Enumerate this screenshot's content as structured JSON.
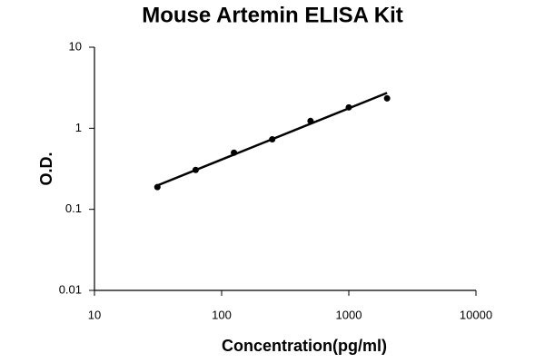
{
  "chart_data": {
    "type": "scatter",
    "title": "Mouse Artemin ELISA Kit",
    "x_label": "Concentration(pg/ml)",
    "y_label": "O.D.",
    "x": [
      31.25,
      62.5,
      125,
      250,
      500,
      1000,
      2000
    ],
    "values": [
      0.188,
      0.306,
      0.5,
      0.73,
      1.23,
      1.81,
      2.34
    ],
    "color": "#000000",
    "fit_line": {
      "x": [
        31.25,
        2000
      ],
      "values": [
        0.197,
        2.73
      ]
    },
    "x_log": true,
    "y_log": true,
    "xlim": [
      10,
      10000
    ],
    "xticks": [
      10,
      100,
      1000,
      10000
    ],
    "ylim": [
      0.01,
      10
    ],
    "yticks": [
      0.01,
      0.1,
      1,
      10
    ]
  }
}
